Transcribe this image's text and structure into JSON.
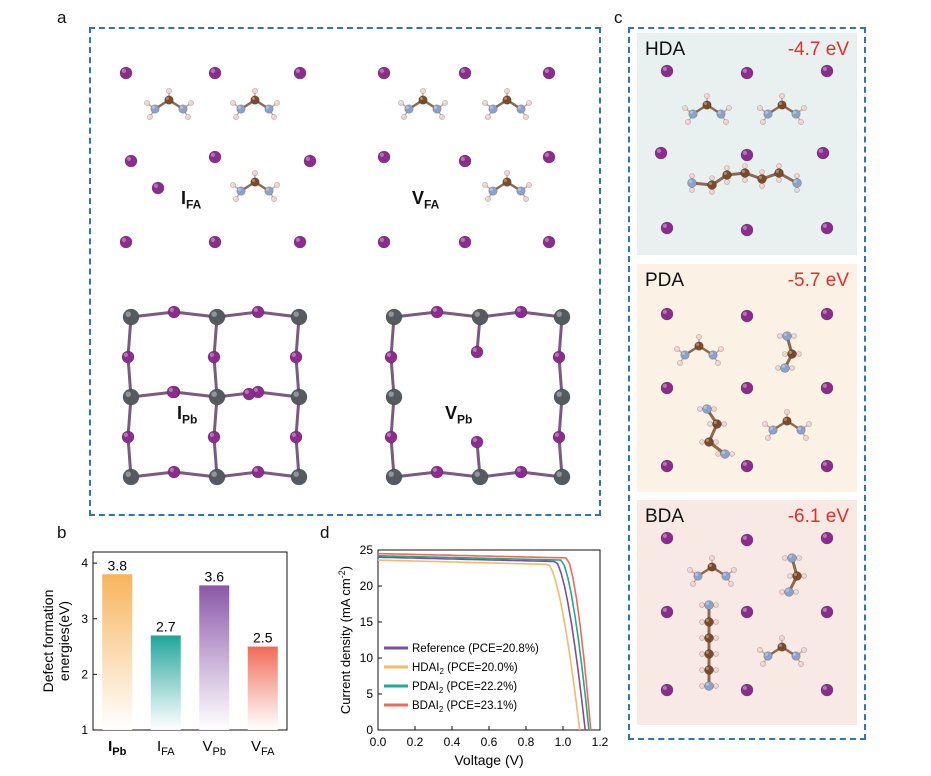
{
  "panels": {
    "a": "a",
    "b": "b",
    "c": "c",
    "d": "d"
  },
  "panel_a": {
    "defects": {
      "i_fa": {
        "main": "I",
        "sub": "FA"
      },
      "v_fa": {
        "main": "V",
        "sub": "FA"
      },
      "i_pb": {
        "main": "I",
        "sub": "Pb"
      },
      "v_pb": {
        "main": "V",
        "sub": "Pb"
      }
    }
  },
  "panel_c": [
    {
      "name": "HDA",
      "energy": "-4.7 eV",
      "bg": "#e8f1f0"
    },
    {
      "name": "PDA",
      "energy": "-5.7 eV",
      "bg": "#fbf1e4"
    },
    {
      "name": "BDA",
      "energy": "-6.1 eV",
      "bg": "#f9e9e4"
    }
  ],
  "colors": {
    "iodine": "#8a2d8c",
    "lead": "#555a60",
    "carbon": "#7a4a2a",
    "nitrogen": "#8ca0c8",
    "hydrogen": "#f0d2d2",
    "box": "#2f75b5"
  },
  "chart_data": [
    {
      "type": "bar",
      "ylabel": "Defect formation energies(eV)",
      "ylim": [
        1,
        4.2
      ],
      "yticks": [
        1,
        2,
        3,
        4
      ],
      "categories": [
        {
          "main": "I",
          "sub": "Pb"
        },
        {
          "main": "I",
          "sub": "FA"
        },
        {
          "main": "V",
          "sub": "Pb"
        },
        {
          "main": "V",
          "sub": "FA"
        }
      ],
      "values": [
        3.8,
        2.7,
        3.6,
        2.5
      ],
      "value_labels": [
        "3.8",
        "2.7",
        "3.6",
        "2.5"
      ],
      "colors": [
        "#f7b35a",
        "#1fa59a",
        "#8b56a8",
        "#f06a55"
      ]
    },
    {
      "type": "line",
      "xlabel": "Voltage (V)",
      "ylabel": "Current density (mA cm",
      "ylabel_sup": "-2",
      "ylabel_end": ")",
      "xlim": [
        0,
        1.2
      ],
      "ylim": [
        0,
        25
      ],
      "xticks": [
        "0.0",
        "0.2",
        "0.4",
        "0.6",
        "0.8",
        "1.0",
        "1.2"
      ],
      "yticks": [
        "0",
        "5",
        "10",
        "15",
        "20",
        "25"
      ],
      "series": [
        {
          "name": "Reference (PCE=20.8%)",
          "legend_main": "Reference (PCE=20.8%)",
          "color": "#7e4e9e",
          "jsc": 24.0,
          "voc": 1.12,
          "knee": 0.96
        },
        {
          "name": "HDAI2 (PCE=20.0%)",
          "legend_main": "HDAI",
          "legend_sub": "2",
          "legend_rest": " (PCE=20.0%)",
          "color": "#f6b869",
          "jsc": 23.6,
          "voc": 1.09,
          "knee": 0.92
        },
        {
          "name": "PDAI2 (PCE=22.2%)",
          "legend_main": "PDAI",
          "legend_sub": "2",
          "legend_rest": " (PCE=22.2%)",
          "color": "#23a797",
          "jsc": 24.2,
          "voc": 1.14,
          "knee": 0.99
        },
        {
          "name": "BDAI2 (PCE=23.1%)",
          "legend_main": "BDAI",
          "legend_sub": "2",
          "legend_rest": " (PCE=23.1%)",
          "color": "#ef6a55",
          "jsc": 24.5,
          "voc": 1.15,
          "knee": 1.02
        }
      ]
    }
  ]
}
